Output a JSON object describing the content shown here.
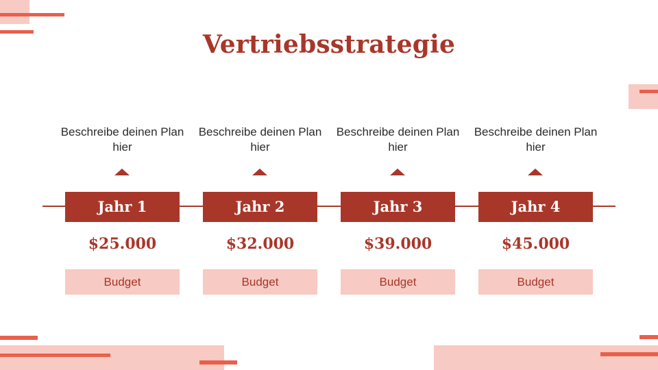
{
  "slide": {
    "title": "Vertriebsstrategie",
    "steps": [
      {
        "description": "Beschreibe deinen Plan hier",
        "year": "Jahr 1",
        "amount": "$25.000",
        "label": "Budget"
      },
      {
        "description": "Beschreibe deinen Plan hier",
        "year": "Jahr 2",
        "amount": "$32.000",
        "label": "Budget"
      },
      {
        "description": "Beschreibe deinen Plan hier",
        "year": "Jahr 3",
        "amount": "$39.000",
        "label": "Budget"
      },
      {
        "description": "Beschreibe deinen Plan hier",
        "year": "Jahr 4",
        "amount": "$45.000",
        "label": "Budget"
      }
    ]
  },
  "colors": {
    "primary": "#a8372a",
    "accent": "#e8604c",
    "light": "#f7cac3",
    "text": "#2b2b2b"
  }
}
